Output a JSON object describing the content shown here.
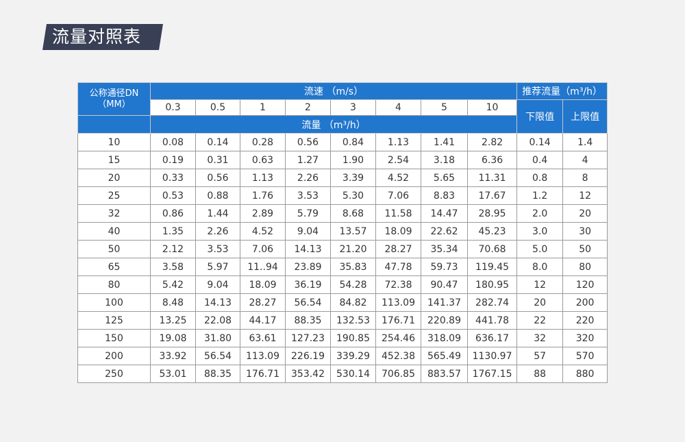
{
  "title": "流量对照表",
  "header": {
    "dn_label": "公称通径DN",
    "dn_unit": "（MM）",
    "velocity_label": "流速 （m/s）",
    "velocities": [
      "0.3",
      "0.5",
      "1",
      "2",
      "3",
      "4",
      "5",
      "10"
    ],
    "flow_label": "流量 （m³/h）",
    "recommended_label": "推荐流量（m³/h）",
    "lower_label": "下限值",
    "upper_label": "上限值"
  },
  "rows": [
    [
      "10",
      "0.08",
      "0.14",
      "0.28",
      "0.56",
      "0.84",
      "1.13",
      "1.41",
      "2.82",
      "0.14",
      "1.4"
    ],
    [
      "15",
      "0.19",
      "0.31",
      "0.63",
      "1.27",
      "1.90",
      "2.54",
      "3.18",
      "6.36",
      "0.4",
      "4"
    ],
    [
      "20",
      "0.33",
      "0.56",
      "1.13",
      "2.26",
      "3.39",
      "4.52",
      "5.65",
      "11.31",
      "0.8",
      "8"
    ],
    [
      "25",
      "0.53",
      "0.88",
      "1.76",
      "3.53",
      "5.30",
      "7.06",
      "8.83",
      "17.67",
      "1.2",
      "12"
    ],
    [
      "32",
      "0.86",
      "1.44",
      "2.89",
      "5.79",
      "8.68",
      "11.58",
      "14.47",
      "28.95",
      "2.0",
      "20"
    ],
    [
      "40",
      "1.35",
      "2.26",
      "4.52",
      "9.04",
      "13.57",
      "18.09",
      "22.62",
      "45.23",
      "3.0",
      "30"
    ],
    [
      "50",
      "2.12",
      "3.53",
      "7.06",
      "14.13",
      "21.20",
      "28.27",
      "35.34",
      "70.68",
      "5.0",
      "50"
    ],
    [
      "65",
      "3.58",
      "5.97",
      "11..94",
      "23.89",
      "35.83",
      "47.78",
      "59.73",
      "119.45",
      "8.0",
      "80"
    ],
    [
      "80",
      "5.42",
      "9.04",
      "18.09",
      "36.19",
      "54.28",
      "72.38",
      "90.47",
      "180.95",
      "12",
      "120"
    ],
    [
      "100",
      "8.48",
      "14.13",
      "28.27",
      "56.54",
      "84.82",
      "113.09",
      "141.37",
      "282.74",
      "20",
      "200"
    ],
    [
      "125",
      "13.25",
      "22.08",
      "44.17",
      "88.35",
      "132.53",
      "176.71",
      "220.89",
      "441.78",
      "22",
      "220"
    ],
    [
      "150",
      "19.08",
      "31.80",
      "63.61",
      "127.23",
      "190.85",
      "254.46",
      "318.09",
      "636.17",
      "32",
      "320"
    ],
    [
      "200",
      "33.92",
      "56.54",
      "113.09",
      "226.19",
      "339.29",
      "452.38",
      "565.49",
      "1130.97",
      "57",
      "570"
    ],
    [
      "250",
      "53.01",
      "88.35",
      "176.71",
      "353.42",
      "530.14",
      "706.85",
      "883.57",
      "1767.15",
      "88",
      "880"
    ]
  ],
  "colors": {
    "header_blue": "#2176cd",
    "banner": "#394055",
    "background": "#f2f2f2"
  }
}
